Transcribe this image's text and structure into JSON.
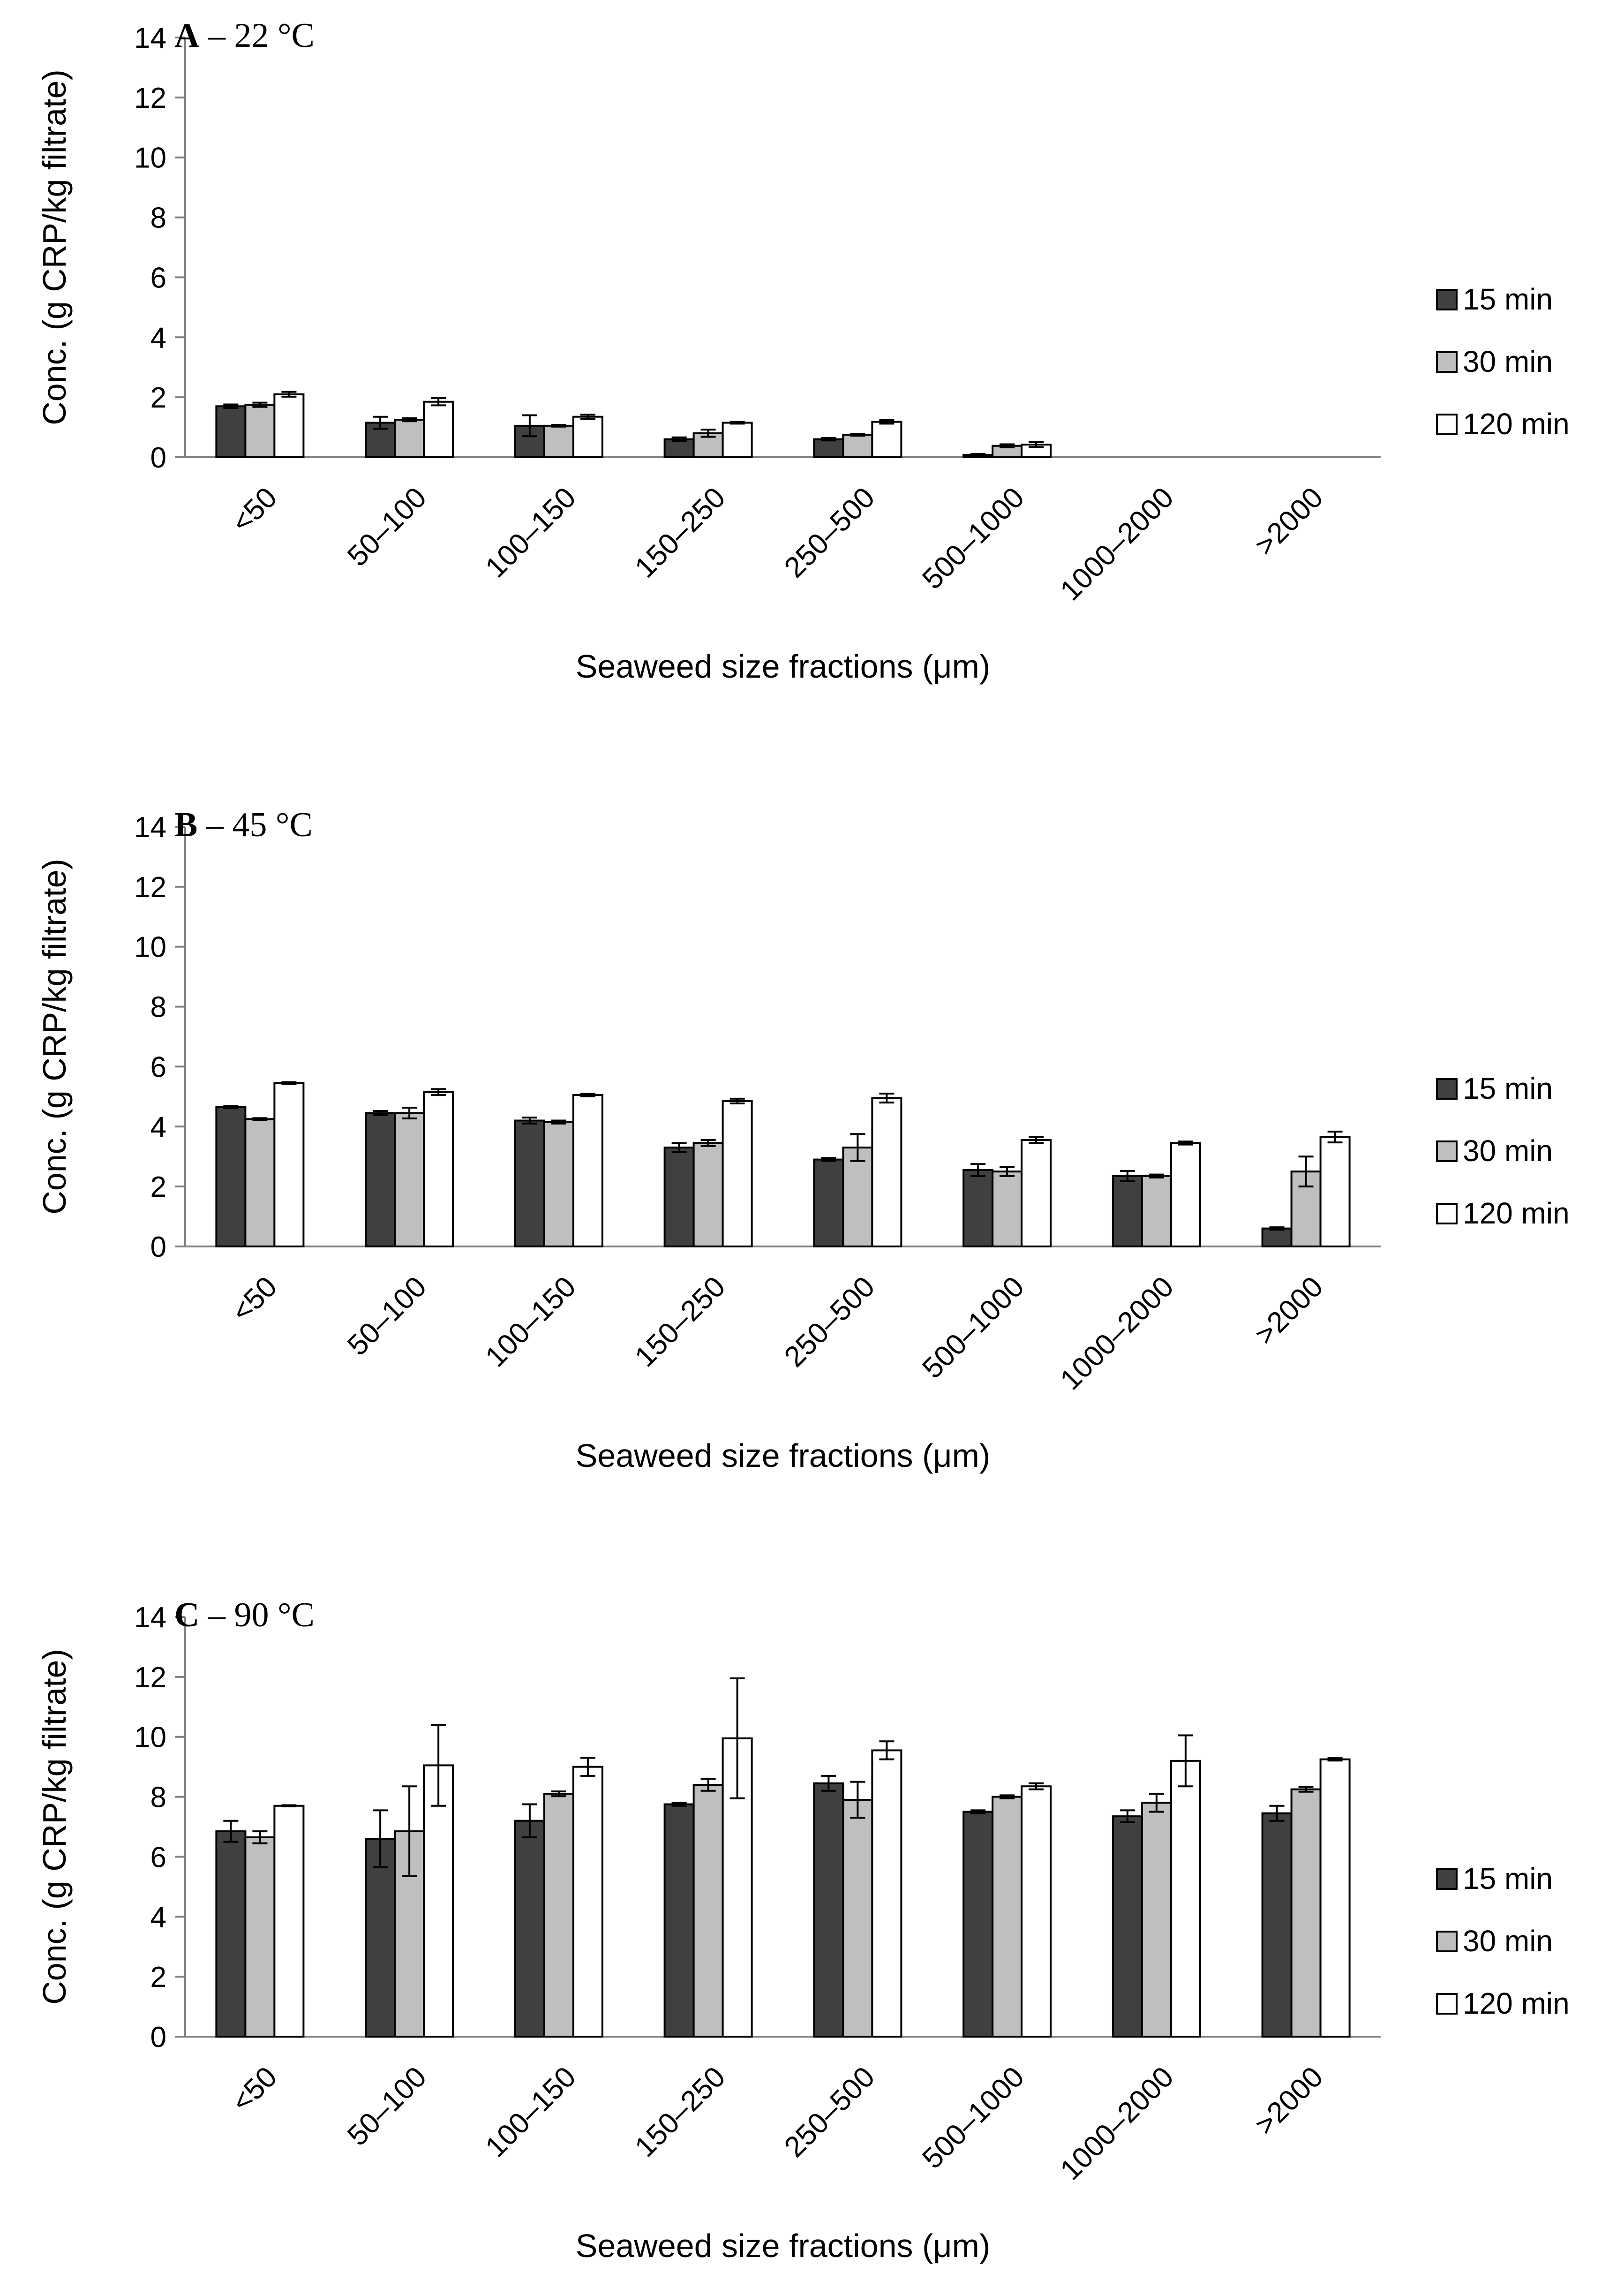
{
  "chart_data": [
    {
      "type": "bar",
      "title": "A – 22 °C",
      "title_letter": "A",
      "title_rest": " – 22 °C",
      "xlabel": "Seaweed size fractions (μm)",
      "ylabel": "Conc. (g CRP/kg filtrate)",
      "ylim": [
        0,
        14
      ],
      "yticks": [
        "0",
        "2",
        "4",
        "6",
        "8",
        "10",
        "12",
        "14"
      ],
      "grid": false,
      "legend_position": "right",
      "categories": [
        "<50",
        "50–100",
        "100–150",
        "150–250",
        "250–500",
        "500–1000",
        "1000–2000",
        ">2000"
      ],
      "series": [
        {
          "name": "15 min",
          "color": "#404040",
          "values": [
            1.7,
            1.15,
            1.05,
            0.6,
            0.6,
            0.08,
            0.0,
            0.0
          ],
          "errors": [
            0.06,
            0.2,
            0.35,
            0.06,
            0.04,
            0.03,
            0.0,
            0.0
          ]
        },
        {
          "name": "30 min",
          "color": "#bfbfbf",
          "values": [
            1.75,
            1.25,
            1.05,
            0.8,
            0.75,
            0.38,
            0.0,
            0.0
          ],
          "errors": [
            0.07,
            0.05,
            0.03,
            0.12,
            0.03,
            0.05,
            0.0,
            0.0
          ]
        },
        {
          "name": "120 min",
          "color": "#ffffff",
          "values": [
            2.1,
            1.85,
            1.35,
            1.15,
            1.18,
            0.42,
            0.0,
            0.0
          ],
          "errors": [
            0.08,
            0.12,
            0.07,
            0.03,
            0.06,
            0.08,
            0.0,
            0.0
          ]
        }
      ]
    },
    {
      "type": "bar",
      "title": "B – 45 °C",
      "title_letter": "B",
      "title_rest": " – 45 °C",
      "xlabel": "Seaweed size fractions (μm)",
      "ylabel": "Conc. (g CRP/kg filtrate)",
      "ylim": [
        0,
        14
      ],
      "yticks": [
        "0",
        "2",
        "4",
        "6",
        "8",
        "10",
        "12",
        "14"
      ],
      "grid": false,
      "legend_position": "right",
      "categories": [
        "<50",
        "50–100",
        "100–150",
        "150–250",
        "250–500",
        "500–1000",
        "1000–2000",
        ">2000"
      ],
      "series": [
        {
          "name": "15 min",
          "color": "#404040",
          "values": [
            4.65,
            4.45,
            4.2,
            3.3,
            2.9,
            2.55,
            2.35,
            0.6
          ],
          "errors": [
            0.04,
            0.07,
            0.1,
            0.15,
            0.05,
            0.2,
            0.17,
            0.04
          ]
        },
        {
          "name": "30 min",
          "color": "#bfbfbf",
          "values": [
            4.25,
            4.45,
            4.15,
            3.45,
            3.3,
            2.5,
            2.35,
            2.5
          ],
          "errors": [
            0.03,
            0.18,
            0.05,
            0.1,
            0.45,
            0.15,
            0.05,
            0.5
          ]
        },
        {
          "name": "120 min",
          "color": "#ffffff",
          "values": [
            5.45,
            5.15,
            5.05,
            4.85,
            4.95,
            3.55,
            3.45,
            3.65
          ],
          "errors": [
            0.03,
            0.1,
            0.04,
            0.08,
            0.15,
            0.1,
            0.05,
            0.18
          ]
        }
      ]
    },
    {
      "type": "bar",
      "title": "C – 90 °C",
      "title_letter": "C",
      "title_rest": " – 90 °C",
      "xlabel": "Seaweed size fractions (μm)",
      "ylabel": "Conc. (g CRP/kg filtrate)",
      "ylim": [
        0,
        14
      ],
      "yticks": [
        "0",
        "2",
        "4",
        "6",
        "8",
        "10",
        "12",
        "14"
      ],
      "grid": false,
      "legend_position": "right",
      "categories": [
        "<50",
        "50–100",
        "100–150",
        "150–250",
        "250–500",
        "500–1000",
        "1000–2000",
        ">2000"
      ],
      "series": [
        {
          "name": "15 min",
          "color": "#404040",
          "values": [
            6.85,
            6.6,
            7.2,
            7.75,
            8.45,
            7.5,
            7.35,
            7.45
          ],
          "errors": [
            0.35,
            0.95,
            0.55,
            0.05,
            0.25,
            0.05,
            0.2,
            0.25
          ]
        },
        {
          "name": "30 min",
          "color": "#bfbfbf",
          "values": [
            6.65,
            6.85,
            8.1,
            8.4,
            7.9,
            8.0,
            7.8,
            8.25
          ],
          "errors": [
            0.2,
            1.5,
            0.08,
            0.2,
            0.6,
            0.05,
            0.3,
            0.08
          ]
        },
        {
          "name": "120 min",
          "color": "#ffffff",
          "values": [
            7.7,
            9.05,
            9.0,
            9.95,
            9.55,
            8.35,
            9.2,
            9.25
          ],
          "errors": [
            0.02,
            1.35,
            0.3,
            2.0,
            0.3,
            0.1,
            0.85,
            0.04
          ]
        }
      ]
    }
  ]
}
